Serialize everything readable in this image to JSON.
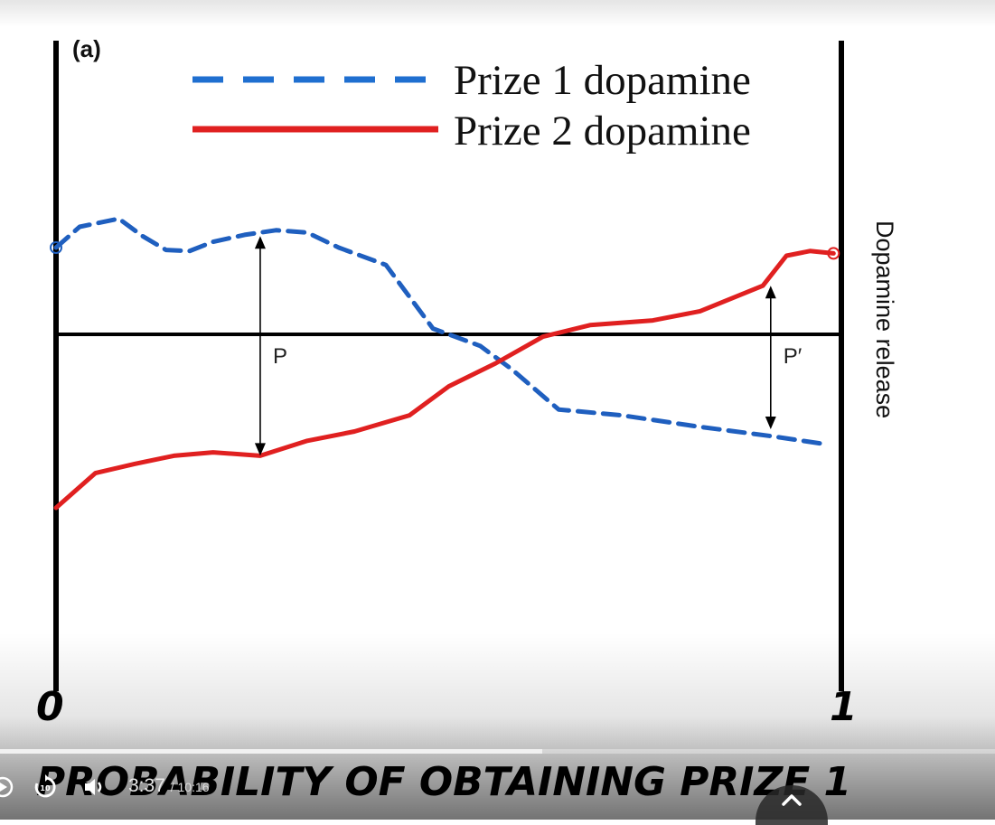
{
  "figure": {
    "panel_label": "(a)",
    "legend": [
      {
        "label": "Prize 1 dopamine",
        "color": "#1f5fbf",
        "style": "dashed"
      },
      {
        "label": "Prize 2 dopamine",
        "color": "#e02020",
        "style": "solid"
      }
    ],
    "right_axis_label": "Dopamine release",
    "annotation_p": "P",
    "annotation_p_prime": "P′",
    "x_start_label": "0",
    "x_end_label": "1",
    "x_axis_title": "PROBABILITY OF OBTAINING PRIZE 1"
  },
  "chart_data": {
    "type": "line",
    "title": "",
    "xlabel": "PROBABILITY OF OBTAINING PRIZE 1",
    "ylabel": "Dopamine release",
    "xlim": [
      0,
      1
    ],
    "x_tick_labels": [
      "0",
      "1"
    ],
    "grid": false,
    "legend_position": "top",
    "series": [
      {
        "name": "Prize 1 dopamine",
        "style": "dashed",
        "color": "#1f5fbf",
        "points": [
          [
            0.0,
            0.75
          ],
          [
            0.03,
            0.93
          ],
          [
            0.08,
            1.0
          ],
          [
            0.11,
            0.85
          ],
          [
            0.14,
            0.73
          ],
          [
            0.17,
            0.72
          ],
          [
            0.2,
            0.8
          ],
          [
            0.24,
            0.86
          ],
          [
            0.28,
            0.9
          ],
          [
            0.32,
            0.88
          ],
          [
            0.36,
            0.75
          ],
          [
            0.42,
            0.6
          ],
          [
            0.48,
            0.05
          ],
          [
            0.54,
            -0.1
          ],
          [
            0.58,
            -0.3
          ],
          [
            0.64,
            -0.65
          ],
          [
            0.72,
            -0.7
          ],
          [
            0.82,
            -0.8
          ],
          [
            0.91,
            -0.88
          ],
          [
            0.98,
            -0.95
          ]
        ]
      },
      {
        "name": "Prize 2 dopamine",
        "style": "solid",
        "color": "#e02020",
        "points": [
          [
            0.0,
            -1.5
          ],
          [
            0.05,
            -1.2
          ],
          [
            0.1,
            -1.12
          ],
          [
            0.15,
            -1.05
          ],
          [
            0.2,
            -1.02
          ],
          [
            0.26,
            -1.05
          ],
          [
            0.32,
            -0.92
          ],
          [
            0.38,
            -0.84
          ],
          [
            0.45,
            -0.7
          ],
          [
            0.5,
            -0.45
          ],
          [
            0.56,
            -0.25
          ],
          [
            0.62,
            -0.02
          ],
          [
            0.68,
            0.08
          ],
          [
            0.76,
            0.12
          ],
          [
            0.82,
            0.2
          ],
          [
            0.9,
            0.42
          ],
          [
            0.93,
            0.68
          ],
          [
            0.96,
            0.72
          ],
          [
            0.99,
            0.7
          ]
        ]
      }
    ],
    "annotations": [
      {
        "text": "P",
        "x": 0.26,
        "from_y": 0.85,
        "to_y": -1.05
      },
      {
        "text": "P′",
        "x": 0.91,
        "from_y": 0.42,
        "to_y": -0.82
      }
    ]
  },
  "player": {
    "current_time": "3:37",
    "duration": "/ 10:16",
    "progress_fraction": 0.545,
    "colors": {
      "progress": "#f1f1f1",
      "track": "rgba(255,255,255,0.35)"
    },
    "icons": [
      "play-icon",
      "replay-10-icon",
      "volume-icon",
      "chevron-up-icon"
    ]
  }
}
